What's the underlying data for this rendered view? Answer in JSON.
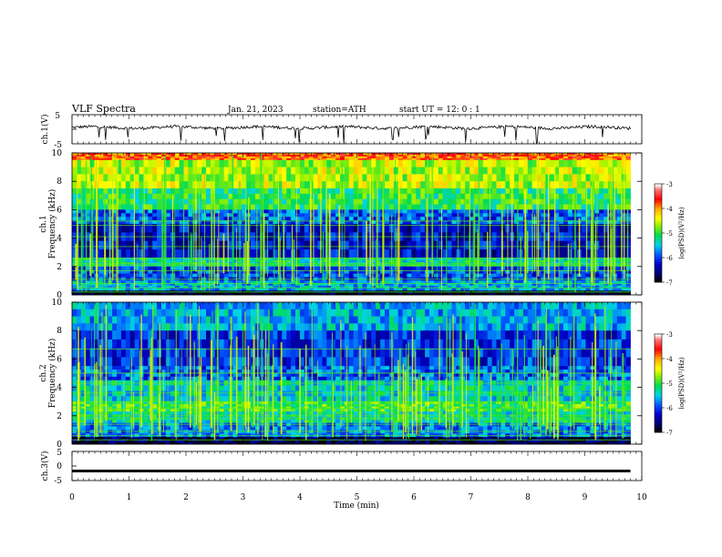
{
  "header": {
    "title": "VLF  Spectra",
    "date": "Jan. 21, 2023",
    "station": "station=ATH",
    "start": "start  UT  =   12: 0  : 1"
  },
  "colorbar": {
    "label": "log(PSD)(V²/Hz)",
    "ticks": [
      "-3",
      "-4",
      "-5",
      "-6",
      "-7"
    ],
    "colors": [
      "#ffffff",
      "#ff6060",
      "#ff0000",
      "#ffcc00",
      "#ffff00",
      "#00e000",
      "#00e0e0",
      "#0060ff",
      "#0000c0",
      "#000080",
      "#000000"
    ]
  },
  "chart_data": [
    {
      "type": "line",
      "name": "ch1-waveform",
      "ylabel": "ch.1(V)",
      "ylim": [
        -5,
        5
      ],
      "yticks": [
        "5",
        "-5"
      ],
      "x_range_min": [
        0,
        9.8
      ],
      "baseline_v": 0.6,
      "noise_amplitude_v": 0.5,
      "spikes_to_negative": true
    },
    {
      "type": "heatmap",
      "name": "ch1-spectrogram",
      "ylabel": "Frequency (kHz)",
      "channel_label": "ch.1",
      "ylim": [
        0,
        10
      ],
      "yticks": [
        "10",
        "8",
        "6",
        "4",
        "2",
        "0"
      ],
      "x_range_min": [
        0,
        9.8
      ],
      "bands_khz": [
        {
          "from": 9.5,
          "to": 10.0,
          "level": -3.8
        },
        {
          "from": 7.5,
          "to": 9.5,
          "level": -4.6
        },
        {
          "from": 6.0,
          "to": 7.5,
          "level": -5.1
        },
        {
          "from": 5.0,
          "to": 6.0,
          "level": -5.9
        },
        {
          "from": 2.6,
          "to": 5.0,
          "level": -6.3
        },
        {
          "from": 2.0,
          "to": 2.6,
          "level": -5.3
        },
        {
          "from": 1.0,
          "to": 2.0,
          "level": -6.0
        },
        {
          "from": 0.3,
          "to": 1.0,
          "level": -5.6
        },
        {
          "from": 0.0,
          "to": 0.3,
          "level": -6.9
        }
      ],
      "lines_khz": [
        0.2,
        0.5,
        0.8,
        1.1,
        1.7,
        2.1,
        2.2,
        2.6,
        3.4,
        4.1,
        4.9,
        5.2
      ]
    },
    {
      "type": "heatmap",
      "name": "ch2-spectrogram",
      "ylabel": "Frequency (kHz)",
      "channel_label": "ch.2",
      "ylim": [
        0,
        10
      ],
      "yticks": [
        "10",
        "8",
        "6",
        "4",
        "2",
        "0"
      ],
      "x_range_min": [
        0,
        9.8
      ],
      "bands_khz": [
        {
          "from": 8.0,
          "to": 10.0,
          "level": -5.6
        },
        {
          "from": 5.5,
          "to": 8.0,
          "level": -6.1
        },
        {
          "from": 4.5,
          "to": 5.5,
          "level": -5.9
        },
        {
          "from": 3.0,
          "to": 4.5,
          "level": -5.4
        },
        {
          "from": 2.3,
          "to": 3.0,
          "level": -5.0
        },
        {
          "from": 1.5,
          "to": 2.3,
          "level": -5.3
        },
        {
          "from": 0.5,
          "to": 1.5,
          "level": -5.8
        },
        {
          "from": 0.0,
          "to": 0.5,
          "level": -6.8
        }
      ],
      "lines_khz": [
        0.3,
        0.6,
        0.9,
        1.4,
        1.8,
        2.0,
        2.5,
        3.0,
        3.6,
        4.3,
        5.0,
        6.7
      ]
    },
    {
      "type": "line",
      "name": "ch3-waveform",
      "ylabel": "ch.3(V)",
      "ylim": [
        -5,
        5
      ],
      "yticks": [
        "5",
        "0",
        "-5"
      ],
      "x_range_min": [
        0,
        9.8
      ],
      "constant_v": -1.7
    }
  ],
  "xaxis": {
    "label": "Time  (min)",
    "range": [
      0,
      10
    ],
    "ticks": [
      "0",
      "1",
      "2",
      "3",
      "4",
      "5",
      "6",
      "7",
      "8",
      "9",
      "10"
    ]
  }
}
